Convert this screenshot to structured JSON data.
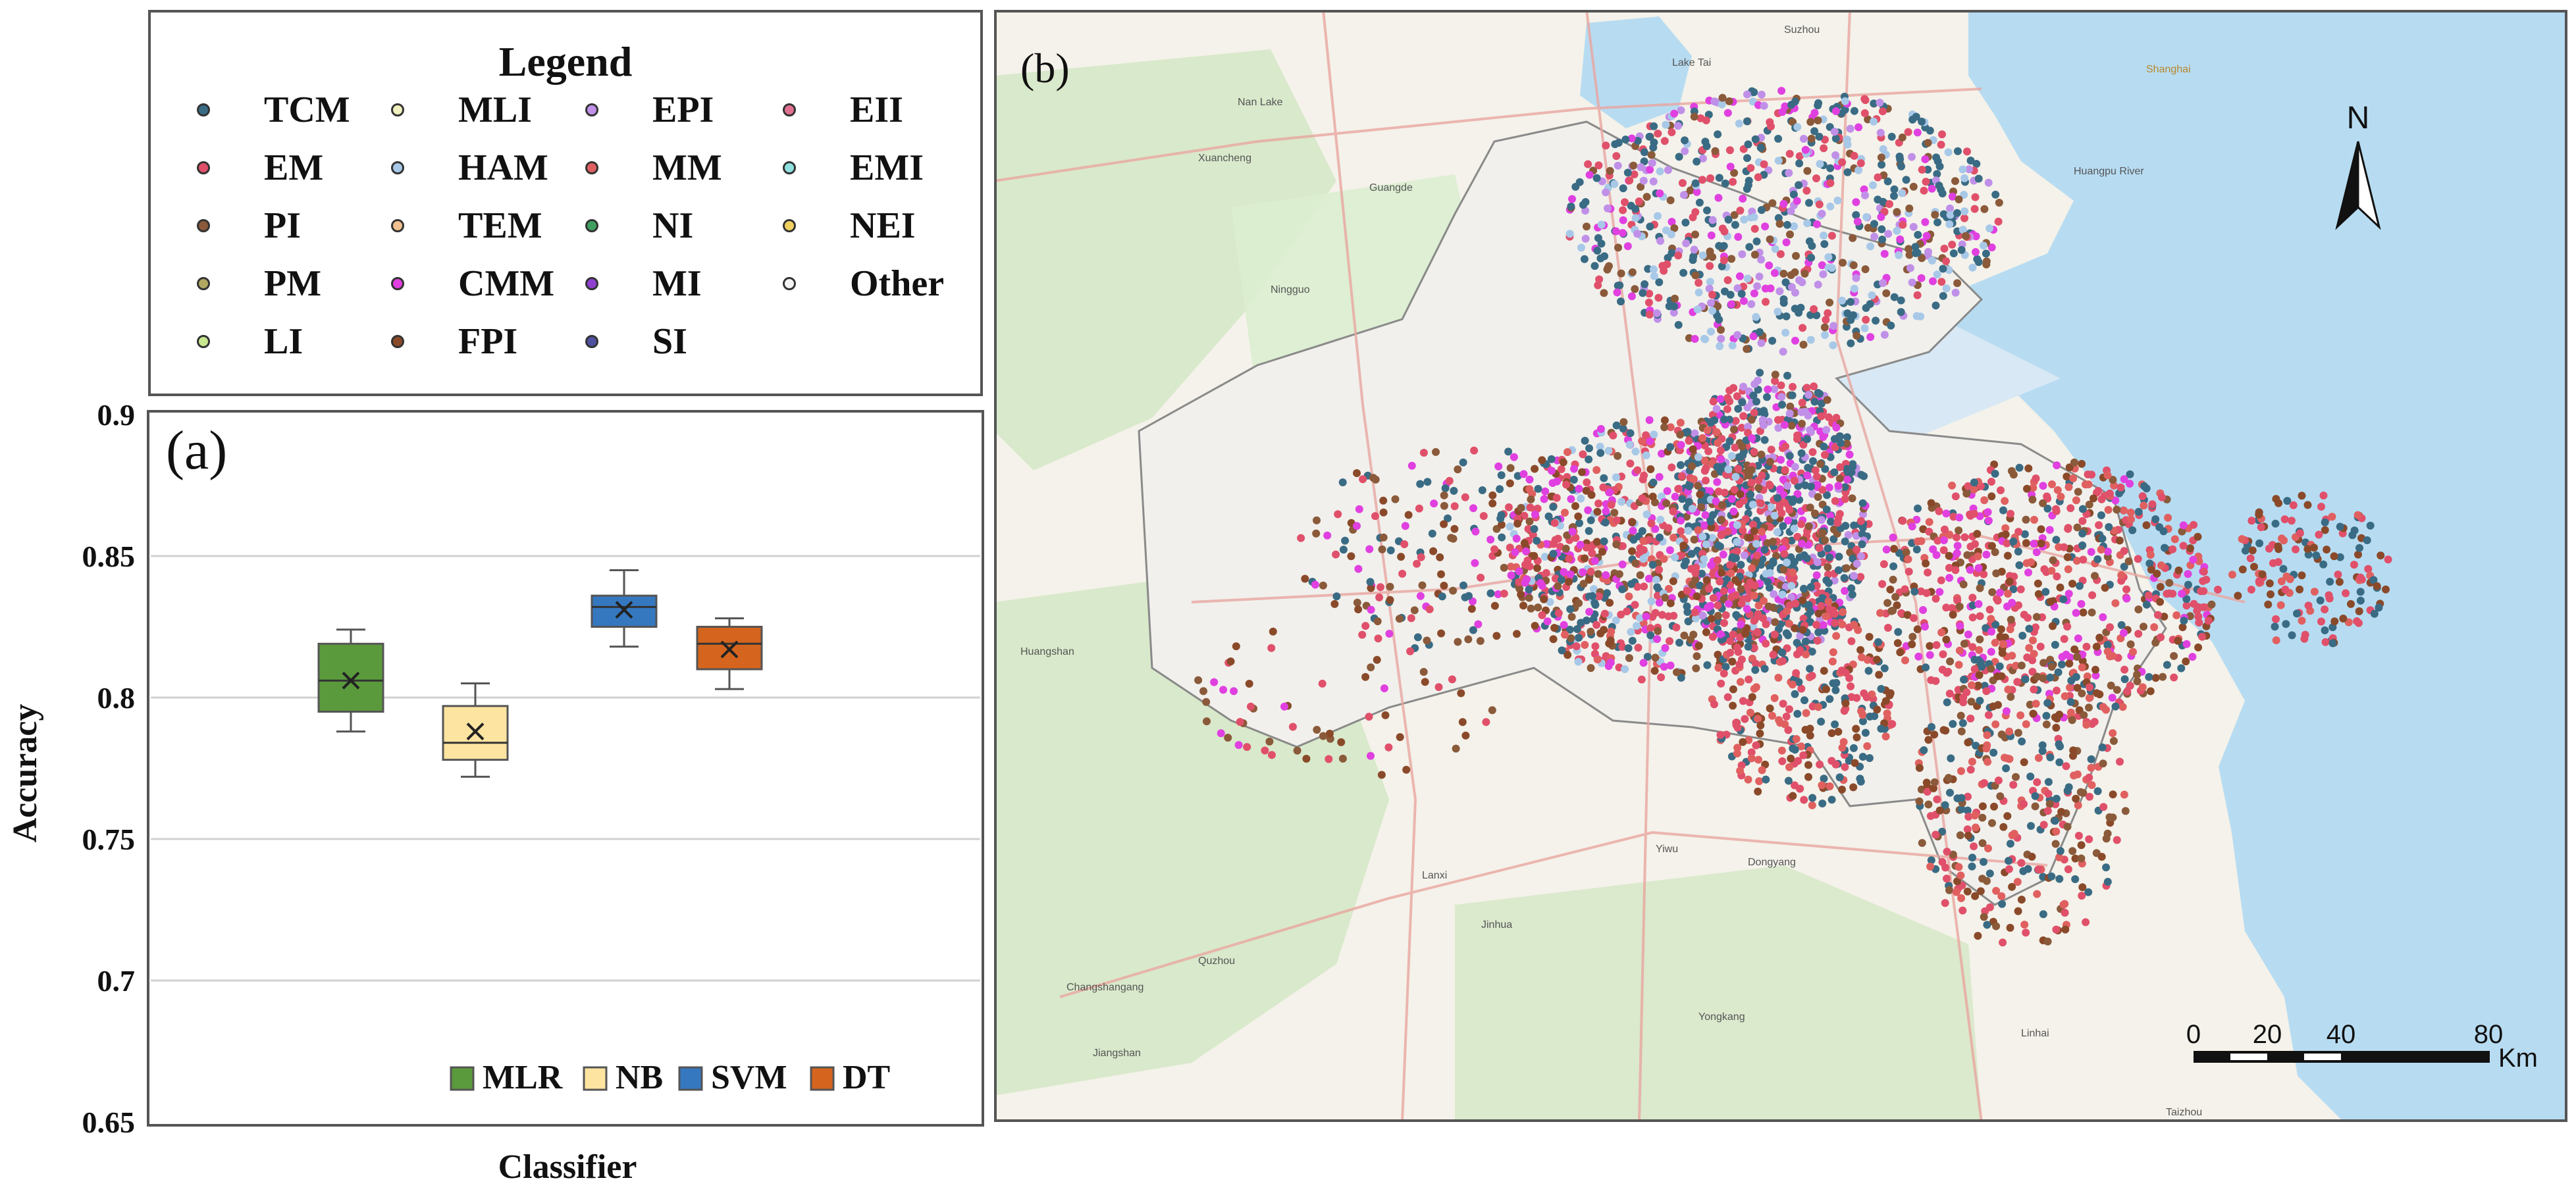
{
  "legend": {
    "title": "Legend",
    "items": [
      {
        "label": "TCM",
        "color": "#3a6b84"
      },
      {
        "label": "EM",
        "color": "#e0506a"
      },
      {
        "label": "PI",
        "color": "#8a5a3a"
      },
      {
        "label": "PM",
        "color": "#b0a860"
      },
      {
        "label": "LI",
        "color": "#c8e890"
      },
      {
        "label": "MLI",
        "color": "#f0f0c0"
      },
      {
        "label": "HAM",
        "color": "#a8c8e8"
      },
      {
        "label": "TEM",
        "color": "#f0c090"
      },
      {
        "label": "CMM",
        "color": "#e040e0"
      },
      {
        "label": "FPI",
        "color": "#8a4a2a"
      },
      {
        "label": "EPI",
        "color": "#c090e8"
      },
      {
        "label": "MM",
        "color": "#e06060"
      },
      {
        "label": "NI",
        "color": "#40a060"
      },
      {
        "label": "MI",
        "color": "#9040d0"
      },
      {
        "label": "SI",
        "color": "#5050a0"
      },
      {
        "label": "EII",
        "color": "#e07090"
      },
      {
        "label": "EMI",
        "color": "#90e0e0"
      },
      {
        "label": "NEI",
        "color": "#f0d060"
      },
      {
        "label": "Other",
        "color": "#f4f4f4"
      }
    ]
  },
  "chart_data": {
    "type": "box",
    "panel_label": "(a)",
    "xlabel": "Classifier",
    "ylabel": "Accuracy",
    "ylim": [
      0.65,
      0.9
    ],
    "yticks": [
      "0.9",
      "0.85",
      "0.8",
      "0.75",
      "0.7",
      "0.65"
    ],
    "grid": true,
    "legend_position": "bottom-right",
    "series": [
      {
        "name": "MLR",
        "color": "#5b9a3c",
        "whisker_low": 0.788,
        "q1": 0.795,
        "median": 0.806,
        "q3": 0.819,
        "whisker_high": 0.824,
        "mean": 0.806
      },
      {
        "name": "NB",
        "color": "#fde4a0",
        "whisker_low": 0.772,
        "q1": 0.778,
        "median": 0.784,
        "q3": 0.797,
        "whisker_high": 0.805,
        "mean": 0.788
      },
      {
        "name": "SVM",
        "color": "#3578c0",
        "whisker_low": 0.818,
        "q1": 0.825,
        "median": 0.832,
        "q3": 0.836,
        "whisker_high": 0.845,
        "mean": 0.831
      },
      {
        "name": "DT",
        "color": "#d5651e",
        "whisker_low": 0.803,
        "q1": 0.81,
        "median": 0.819,
        "q3": 0.825,
        "whisker_high": 0.828,
        "mean": 0.817
      }
    ]
  },
  "map": {
    "panel_label": "(b)",
    "north": "N",
    "scale_ticks": [
      "0",
      "20",
      "40",
      "80"
    ],
    "scale_unit": "Km",
    "places": [
      {
        "name": "Suzhou"
      },
      {
        "name": "Shanghai"
      },
      {
        "name": "Lake Tai"
      },
      {
        "name": "Nan Lake"
      },
      {
        "name": "Xuancheng"
      },
      {
        "name": "Guangde"
      },
      {
        "name": "Ningguo"
      },
      {
        "name": "Huangshan"
      },
      {
        "name": "Quzhou"
      },
      {
        "name": "Jiangshan"
      },
      {
        "name": "Changshangang"
      },
      {
        "name": "Jinhua"
      },
      {
        "name": "Yiwu"
      },
      {
        "name": "Dongyang"
      },
      {
        "name": "Yongkang"
      },
      {
        "name": "Linhai"
      },
      {
        "name": "Taizhou"
      },
      {
        "name": "Lanxi"
      },
      {
        "name": "Huangpu River"
      }
    ]
  }
}
